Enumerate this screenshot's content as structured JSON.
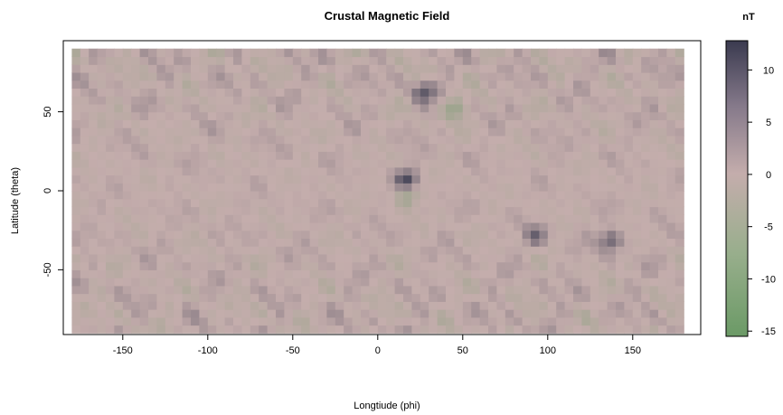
{
  "chart_data": {
    "type": "heatmap",
    "title": "Crustal Magnetic Field",
    "xlabel": "Longtiude (phi)",
    "ylabel": "Latitude (theta)",
    "xlim": [
      -185,
      190
    ],
    "ylim": [
      -91,
      95
    ],
    "xticks": [
      -150,
      -100,
      -50,
      0,
      50,
      100,
      150
    ],
    "yticks": [
      -50,
      0,
      50
    ],
    "grid": false,
    "legend": {
      "title": "nT",
      "ticks": [
        10,
        5,
        0,
        -5,
        -10,
        -15
      ],
      "range": [
        -15.5,
        12.8
      ],
      "colors": {
        "low": "#6b9a66",
        "mid": "#c4adac",
        "high": "#3a3a4f"
      }
    },
    "data_extent": {
      "longitude": [
        -180,
        180
      ],
      "latitude": [
        -90,
        90
      ]
    },
    "notable_features": [
      {
        "lon": 17,
        "lat": 7,
        "value": 11
      },
      {
        "lon": 17,
        "lat": -3,
        "value": -7
      },
      {
        "lon": 27,
        "lat": 63,
        "value": 9
      },
      {
        "lon": 45,
        "lat": 52,
        "value": -8
      },
      {
        "lon": 137,
        "lat": -31,
        "value": 9
      },
      {
        "lon": 93,
        "lat": -28,
        "value": 7
      }
    ]
  }
}
